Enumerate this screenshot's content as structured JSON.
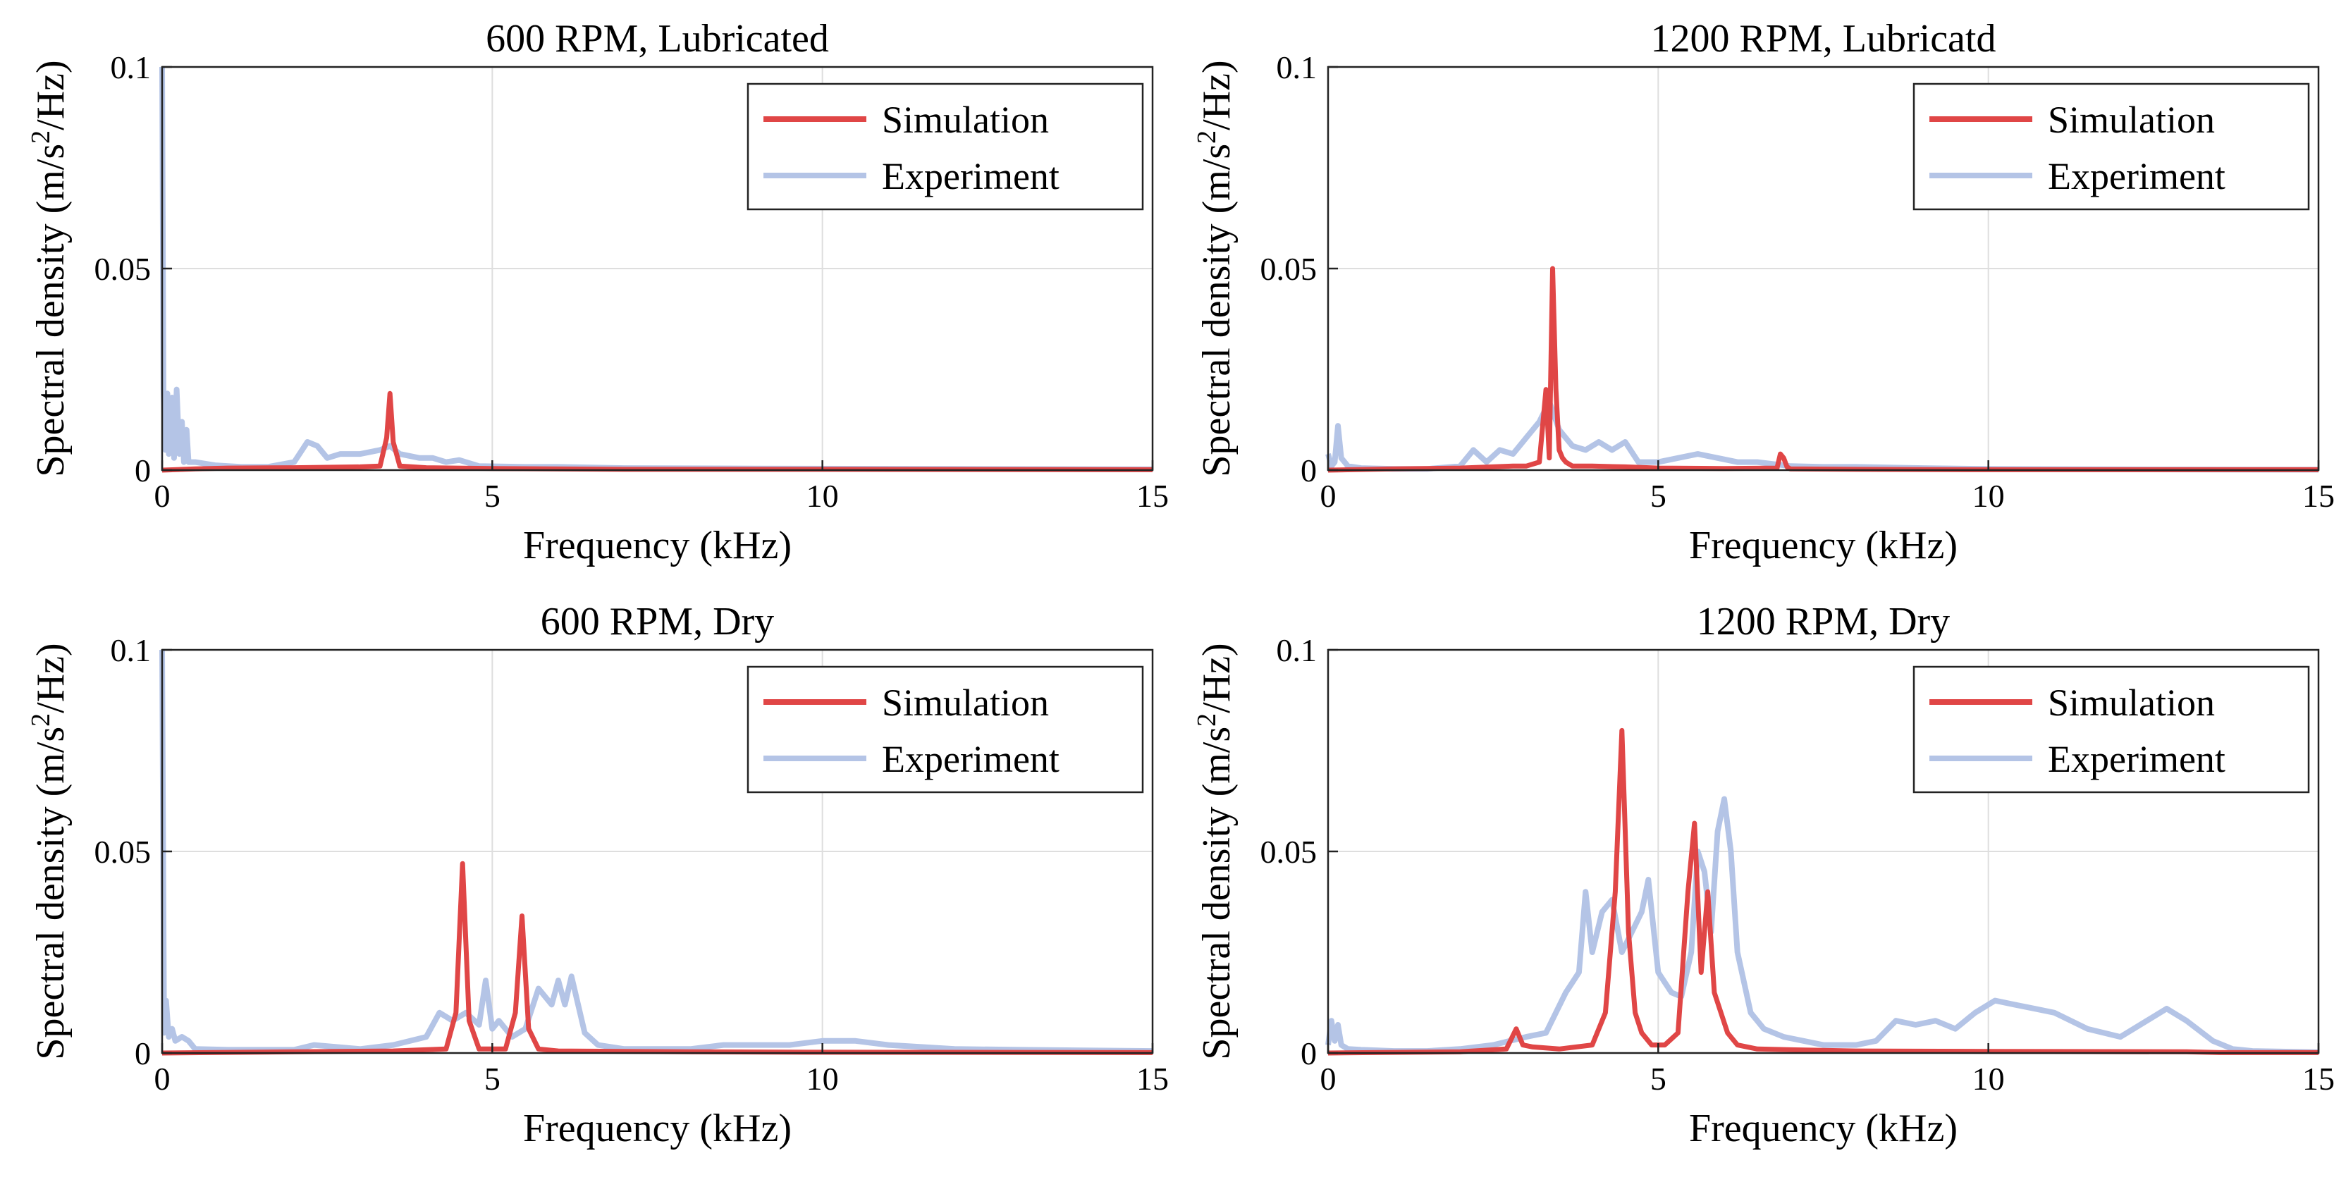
{
  "figure": {
    "colors": {
      "simulation": "#e04646",
      "experiment": "#b4c4e6",
      "grid": "#dedede",
      "axes": "#222222"
    }
  },
  "chart_data": [
    {
      "type": "line",
      "title": "600 RPM, Lubricated",
      "xlabel": "Frequency (kHz)",
      "ylabel": "Spectral density (m/s^2/Hz)",
      "xlim": [
        0,
        15
      ],
      "ylim": [
        0,
        0.1
      ],
      "xticks": [
        "0",
        "5",
        "10",
        "15"
      ],
      "yticks": [
        "0",
        "0.05",
        "0.1"
      ],
      "grid": true,
      "legend": "top-right",
      "series": [
        {
          "name": "Simulation",
          "color": "#e04646",
          "x": [
            0,
            0.5,
            1.0,
            2.0,
            3.0,
            3.3,
            3.4,
            3.45,
            3.5,
            3.6,
            4.0,
            5.0,
            7.0,
            10.0,
            15.0
          ],
          "y": [
            0,
            0.0003,
            0.0005,
            0.0006,
            0.0008,
            0.001,
            0.008,
            0.019,
            0.007,
            0.001,
            0.0006,
            0.0004,
            0.0002,
            0.0002,
            0.0001
          ]
        },
        {
          "name": "Experiment",
          "color": "#b4c4e6",
          "x": [
            0,
            0.02,
            0.05,
            0.08,
            0.1,
            0.15,
            0.18,
            0.22,
            0.26,
            0.3,
            0.33,
            0.37,
            0.4,
            0.5,
            0.8,
            1.2,
            1.6,
            2.0,
            2.2,
            2.35,
            2.5,
            2.7,
            3.0,
            3.3,
            3.45,
            3.6,
            3.9,
            4.1,
            4.3,
            4.5,
            4.8,
            5.5,
            6.0,
            7.0,
            9.0,
            12.0,
            15.0
          ],
          "y": [
            0.1,
            0.02,
            0.005,
            0.019,
            0.004,
            0.018,
            0.003,
            0.02,
            0.004,
            0.012,
            0.002,
            0.01,
            0.002,
            0.002,
            0.0012,
            0.0008,
            0.0008,
            0.002,
            0.007,
            0.006,
            0.003,
            0.004,
            0.004,
            0.005,
            0.006,
            0.004,
            0.003,
            0.003,
            0.002,
            0.0025,
            0.001,
            0.0008,
            0.0008,
            0.0005,
            0.0004,
            0.0003,
            0.0002
          ]
        }
      ]
    },
    {
      "type": "line",
      "title": "1200 RPM, Lubricatd",
      "xlabel": "Frequency (kHz)",
      "ylabel": "Spectral density (m/s^2/Hz)",
      "xlim": [
        0,
        15
      ],
      "ylim": [
        0,
        0.1
      ],
      "xticks": [
        "0",
        "5",
        "10",
        "15"
      ],
      "yticks": [
        "0",
        "0.05",
        "0.1"
      ],
      "grid": true,
      "legend": "top-right",
      "series": [
        {
          "name": "Simulation",
          "color": "#e04646",
          "x": [
            0,
            1.0,
            2.0,
            2.8,
            3.0,
            3.2,
            3.3,
            3.35,
            3.4,
            3.45,
            3.5,
            3.55,
            3.6,
            3.7,
            4.0,
            4.5,
            5.0,
            6.0,
            6.8,
            6.85,
            6.9,
            6.95,
            7.0,
            8.0,
            10.0,
            15.0
          ],
          "y": [
            0,
            0.0003,
            0.0005,
            0.001,
            0.001,
            0.002,
            0.02,
            0.003,
            0.05,
            0.02,
            0.005,
            0.003,
            0.002,
            0.001,
            0.001,
            0.0008,
            0.0005,
            0.0004,
            0.0005,
            0.004,
            0.003,
            0.0008,
            0.0003,
            0.0002,
            0.0001,
            0.0001
          ]
        },
        {
          "name": "Experiment",
          "color": "#b4c4e6",
          "x": [
            0,
            0.05,
            0.1,
            0.15,
            0.2,
            0.3,
            0.5,
            1.0,
            1.5,
            2.0,
            2.2,
            2.4,
            2.6,
            2.8,
            3.0,
            3.2,
            3.35,
            3.5,
            3.7,
            3.9,
            4.1,
            4.3,
            4.5,
            4.7,
            5.0,
            5.3,
            5.6,
            5.9,
            6.2,
            6.5,
            7.0,
            7.5,
            8.0,
            9.0,
            10.0,
            12.0,
            15.0
          ],
          "y": [
            0.004,
            0.001,
            0.002,
            0.011,
            0.003,
            0.001,
            0.0005,
            0.0003,
            0.0003,
            0.001,
            0.005,
            0.002,
            0.005,
            0.004,
            0.008,
            0.012,
            0.017,
            0.01,
            0.006,
            0.005,
            0.007,
            0.005,
            0.007,
            0.002,
            0.002,
            0.003,
            0.004,
            0.003,
            0.002,
            0.002,
            0.001,
            0.0008,
            0.0008,
            0.0005,
            0.0003,
            0.0002,
            0.0001
          ]
        }
      ]
    },
    {
      "type": "line",
      "title": "600 RPM, Dry",
      "xlabel": "Frequency (kHz)",
      "ylabel": "Spectral density (m/s^2/Hz)",
      "xlim": [
        0,
        15
      ],
      "ylim": [
        0,
        0.1
      ],
      "xticks": [
        "0",
        "5",
        "10",
        "15"
      ],
      "yticks": [
        "0",
        "0.05",
        "0.1"
      ],
      "grid": true,
      "legend": "top-right",
      "series": [
        {
          "name": "Simulation",
          "color": "#e04646",
          "x": [
            0,
            2.0,
            3.5,
            4.3,
            4.45,
            4.55,
            4.65,
            4.8,
            5.2,
            5.35,
            5.45,
            5.55,
            5.7,
            6.0,
            8.0,
            10.0,
            15.0
          ],
          "y": [
            0,
            0.0003,
            0.0005,
            0.001,
            0.01,
            0.047,
            0.008,
            0.001,
            0.001,
            0.01,
            0.034,
            0.006,
            0.001,
            0.0005,
            0.0003,
            0.0002,
            0.0001
          ]
        },
        {
          "name": "Experiment",
          "color": "#b4c4e6",
          "x": [
            0,
            0.03,
            0.06,
            0.1,
            0.15,
            0.2,
            0.3,
            0.4,
            0.5,
            1.0,
            2.0,
            2.3,
            3.0,
            3.5,
            4.0,
            4.2,
            4.4,
            4.6,
            4.8,
            4.9,
            5.0,
            5.1,
            5.3,
            5.5,
            5.7,
            5.9,
            6.0,
            6.1,
            6.2,
            6.4,
            6.6,
            7.0,
            8.0,
            8.5,
            9.0,
            9.5,
            10.0,
            10.5,
            11.0,
            12.0,
            13.0,
            15.0
          ],
          "y": [
            0.1,
            0.005,
            0.013,
            0.004,
            0.006,
            0.003,
            0.004,
            0.003,
            0.001,
            0.0008,
            0.0008,
            0.002,
            0.001,
            0.002,
            0.004,
            0.01,
            0.008,
            0.01,
            0.007,
            0.018,
            0.006,
            0.008,
            0.004,
            0.006,
            0.016,
            0.012,
            0.018,
            0.012,
            0.019,
            0.005,
            0.002,
            0.001,
            0.001,
            0.002,
            0.002,
            0.002,
            0.003,
            0.003,
            0.002,
            0.001,
            0.0008,
            0.0005
          ]
        }
      ]
    },
    {
      "type": "line",
      "title": "1200 RPM, Dry",
      "xlabel": "Frequency (kHz)",
      "ylabel": "Spectral density (m/s^2/Hz)",
      "xlim": [
        0,
        15
      ],
      "ylim": [
        0,
        0.1
      ],
      "xticks": [
        "0",
        "5",
        "10",
        "15"
      ],
      "yticks": [
        "0",
        "0.05",
        "0.1"
      ],
      "grid": true,
      "legend": "top-right",
      "series": [
        {
          "name": "Simulation",
          "color": "#e04646",
          "x": [
            0,
            2.0,
            2.7,
            2.85,
            2.95,
            3.1,
            3.5,
            4.0,
            4.2,
            4.35,
            4.45,
            4.55,
            4.65,
            4.75,
            4.9,
            5.1,
            5.3,
            5.45,
            5.55,
            5.65,
            5.75,
            5.85,
            5.95,
            6.05,
            6.2,
            6.5,
            7.0,
            8.0,
            10.0,
            13.0,
            13.5,
            15.0
          ],
          "y": [
            0,
            0.0003,
            0.001,
            0.006,
            0.002,
            0.0015,
            0.001,
            0.002,
            0.01,
            0.04,
            0.08,
            0.03,
            0.01,
            0.005,
            0.002,
            0.002,
            0.005,
            0.04,
            0.057,
            0.02,
            0.04,
            0.015,
            0.01,
            0.005,
            0.002,
            0.001,
            0.0008,
            0.0005,
            0.0004,
            0.0003,
            0.0001,
            0.0001
          ]
        },
        {
          "name": "Experiment",
          "color": "#b4c4e6",
          "x": [
            0,
            0.05,
            0.1,
            0.15,
            0.2,
            0.3,
            0.5,
            1.0,
            1.5,
            2.0,
            2.5,
            3.0,
            3.3,
            3.6,
            3.8,
            3.9,
            4.0,
            4.15,
            4.3,
            4.45,
            4.6,
            4.75,
            4.85,
            5.0,
            5.2,
            5.35,
            5.5,
            5.6,
            5.7,
            5.8,
            5.9,
            6.0,
            6.1,
            6.2,
            6.4,
            6.6,
            6.9,
            7.2,
            7.5,
            8.0,
            8.3,
            8.6,
            8.9,
            9.2,
            9.5,
            9.8,
            10.1,
            10.4,
            10.7,
            11.0,
            11.5,
            12.0,
            12.4,
            12.7,
            13.0,
            13.4,
            13.7,
            14.0,
            15.0
          ],
          "y": [
            0.002,
            0.008,
            0.003,
            0.007,
            0.002,
            0.001,
            0.0008,
            0.0005,
            0.0005,
            0.001,
            0.002,
            0.004,
            0.005,
            0.015,
            0.02,
            0.04,
            0.025,
            0.035,
            0.038,
            0.025,
            0.03,
            0.035,
            0.043,
            0.02,
            0.015,
            0.014,
            0.025,
            0.05,
            0.045,
            0.03,
            0.055,
            0.063,
            0.05,
            0.025,
            0.01,
            0.006,
            0.004,
            0.003,
            0.002,
            0.002,
            0.003,
            0.008,
            0.007,
            0.008,
            0.006,
            0.01,
            0.013,
            0.012,
            0.011,
            0.01,
            0.006,
            0.004,
            0.008,
            0.011,
            0.008,
            0.003,
            0.001,
            0.0005,
            0.0002
          ]
        }
      ]
    }
  ]
}
